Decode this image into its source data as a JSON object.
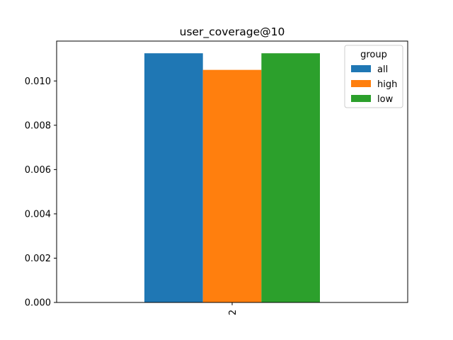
{
  "chart_data": {
    "type": "bar",
    "title": "user_coverage@10",
    "xlabel": "",
    "ylabel": "",
    "categories": [
      "2"
    ],
    "series": [
      {
        "name": "all",
        "values": [
          0.01125
        ],
        "color": "#1f77b4"
      },
      {
        "name": "high",
        "values": [
          0.0105
        ],
        "color": "#ff7f0e"
      },
      {
        "name": "low",
        "values": [
          0.01125
        ],
        "color": "#2ca02c"
      }
    ],
    "ylim": [
      0,
      0.0118
    ],
    "yticks": [
      "0.000",
      "0.002",
      "0.004",
      "0.006",
      "0.008",
      "0.010"
    ],
    "ytick_values": [
      0,
      0.002,
      0.004,
      0.006,
      0.008,
      0.01
    ],
    "legend": {
      "title": "group",
      "position": "top-right"
    },
    "grid": false
  }
}
